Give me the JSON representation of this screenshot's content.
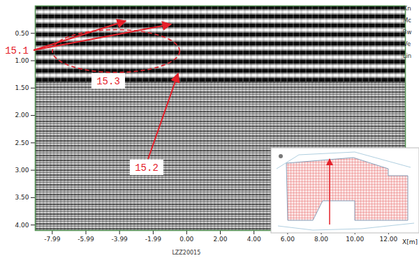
{
  "chart_data": {
    "type": "radargram",
    "x_label": "X[m]",
    "profile": "LZZ20015",
    "xlim": [
      -9,
      13
    ],
    "xticks": [
      -7.99,
      -5.99,
      -3.99,
      -1.99,
      {
        "value": 0,
        "label": "0.00"
      },
      {
        "value": 2,
        "label": "2.00"
      },
      {
        "value": 4,
        "label": "4.00"
      },
      {
        "value": 6,
        "label": "6.00"
      },
      {
        "value": 8,
        "label": "8.00"
      },
      {
        "value": 10,
        "label": "10.00"
      },
      {
        "value": 12,
        "label": "12.00"
      }
    ],
    "ylim": [
      0,
      4.1
    ],
    "yticks": [
      {
        "value": 0.5,
        "label": "0.50"
      },
      {
        "value": 1,
        "label": "1.00"
      },
      {
        "value": 1.5,
        "label": "1.50"
      },
      {
        "value": 2,
        "label": "2.00"
      },
      {
        "value": 2.5,
        "label": "2.50"
      },
      {
        "value": 3,
        "label": "3.00"
      },
      {
        "value": 3.5,
        "label": "3.50"
      },
      {
        "value": 4,
        "label": "4.00"
      }
    ],
    "layer_labels": [
      "Xn",
      "Mc",
      "Bw",
      "Ve",
      "Lin"
    ],
    "annotations": [
      {
        "label": "15.1",
        "targets": [
          {
            "x": -3.6,
            "y": 0.28
          },
          {
            "x": -0.91,
            "y": 0.34
          }
        ]
      },
      {
        "label": "15.2",
        "targets": [
          {
            "x": -0.49,
            "y": 1.24
          }
        ]
      },
      {
        "label": "15.3",
        "ellipse": {
          "x": -4.18,
          "y": 0.83,
          "rx": 3.78,
          "ry": 0.39
        }
      }
    ]
  }
}
